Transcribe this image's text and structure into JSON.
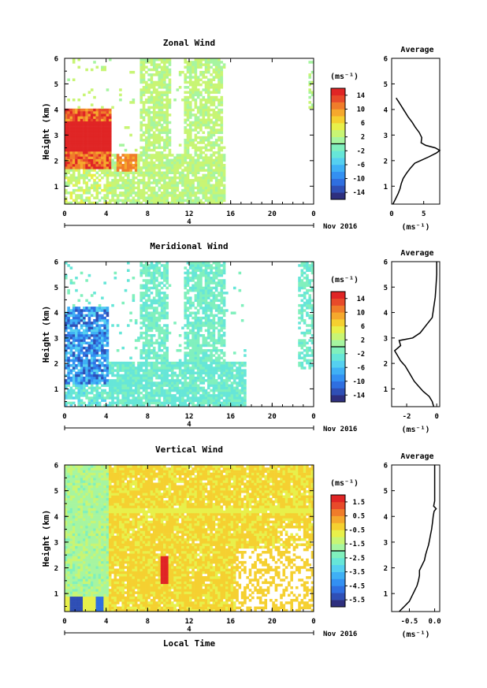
{
  "chart_data": [
    {
      "type": "heatmap",
      "title": "Zonal Wind",
      "ylabel": "Height (km)",
      "x_ticks": [
        "0",
        "4",
        "8",
        "12",
        "16",
        "20",
        "0"
      ],
      "y_ticks": [
        "1",
        "2",
        "3",
        "4",
        "5",
        "6"
      ],
      "xlim": [
        0,
        24
      ],
      "ylim": [
        0.3,
        6
      ],
      "date_marker": "4",
      "date_label": "Nov 2016",
      "colorbar": {
        "unit": "(ms⁻¹)",
        "ticks": [
          "14",
          "10",
          "6",
          "2",
          "-2",
          "-6",
          "-10",
          "-14"
        ],
        "range": [
          -16,
          16
        ],
        "colors": [
          "#2e2f7e",
          "#2f4fb5",
          "#2f6fe0",
          "#3390f2",
          "#3fb0f5",
          "#55d0f0",
          "#66e6d8",
          "#80f0bd",
          "#a6f5a0",
          "#c8f574",
          "#e8f04a",
          "#f5d030",
          "#f5a82d",
          "#f07c2a",
          "#e84a2a",
          "#e02525"
        ]
      },
      "avg_title": "Average",
      "avg_xticks": [
        "0",
        "5"
      ],
      "avg_xlim": [
        0,
        7.5
      ],
      "avg_xlabel": "(ms⁻¹)",
      "avg_profile": [
        [
          0.3,
          0.2
        ],
        [
          0.5,
          0.6
        ],
        [
          0.7,
          1.0
        ],
        [
          0.9,
          1.3
        ],
        [
          1.1,
          1.5
        ],
        [
          1.3,
          1.8
        ],
        [
          1.5,
          2.3
        ],
        [
          1.7,
          2.9
        ],
        [
          1.9,
          3.6
        ],
        [
          2.0,
          4.5
        ],
        [
          2.15,
          5.8
        ],
        [
          2.3,
          7.0
        ],
        [
          2.4,
          7.5
        ],
        [
          2.5,
          6.8
        ],
        [
          2.6,
          5.3
        ],
        [
          2.7,
          4.6
        ],
        [
          2.9,
          4.7
        ],
        [
          3.1,
          4.3
        ],
        [
          3.3,
          3.7
        ],
        [
          3.5,
          3.2
        ],
        [
          3.7,
          2.6
        ],
        [
          3.9,
          2.1
        ],
        [
          4.1,
          1.6
        ],
        [
          4.3,
          1.1
        ],
        [
          4.45,
          0.7
        ]
      ]
    },
    {
      "type": "heatmap",
      "title": "Meridional Wind",
      "ylabel": "Height (km)",
      "x_ticks": [
        "0",
        "4",
        "8",
        "12",
        "16",
        "20",
        "0"
      ],
      "y_ticks": [
        "1",
        "2",
        "3",
        "4",
        "5",
        "6"
      ],
      "xlim": [
        0,
        24
      ],
      "ylim": [
        0.3,
        6
      ],
      "date_marker": "4",
      "date_label": "Nov 2016",
      "colorbar": {
        "unit": "(ms⁻¹)",
        "ticks": [
          "14",
          "10",
          "6",
          "2",
          "-2",
          "-6",
          "-10",
          "-14"
        ],
        "range": [
          -16,
          16
        ],
        "colors": [
          "#2e2f7e",
          "#2f4fb5",
          "#2f6fe0",
          "#3390f2",
          "#3fb0f5",
          "#55d0f0",
          "#66e6d8",
          "#80f0bd",
          "#a6f5a0",
          "#c8f574",
          "#e8f04a",
          "#f5d030",
          "#f5a82d",
          "#f07c2a",
          "#e84a2a",
          "#e02525"
        ]
      },
      "avg_title": "Average",
      "avg_xticks": [
        "-2",
        "0"
      ],
      "avg_xlim": [
        -3,
        0.2
      ],
      "avg_xlabel": "(ms⁻¹)",
      "avg_profile": [
        [
          0.3,
          -0.2
        ],
        [
          0.5,
          -0.3
        ],
        [
          0.7,
          -0.5
        ],
        [
          0.9,
          -0.9
        ],
        [
          1.1,
          -1.2
        ],
        [
          1.3,
          -1.5
        ],
        [
          1.5,
          -1.7
        ],
        [
          1.7,
          -1.9
        ],
        [
          1.9,
          -2.1
        ],
        [
          2.1,
          -2.4
        ],
        [
          2.3,
          -2.6
        ],
        [
          2.5,
          -2.8
        ],
        [
          2.7,
          -2.4
        ],
        [
          2.9,
          -2.5
        ],
        [
          3.0,
          -1.6
        ],
        [
          3.2,
          -1.1
        ],
        [
          3.5,
          -0.7
        ],
        [
          3.8,
          -0.3
        ],
        [
          4.2,
          -0.2
        ],
        [
          4.6,
          -0.1
        ],
        [
          5.0,
          -0.05
        ],
        [
          5.5,
          0.0
        ],
        [
          6.0,
          0.0
        ]
      ]
    },
    {
      "type": "heatmap",
      "title": "Vertical Wind",
      "ylabel": "Height (km)",
      "xlabel": "Local Time",
      "x_ticks": [
        "0",
        "4",
        "8",
        "12",
        "16",
        "20",
        "0"
      ],
      "y_ticks": [
        "1",
        "2",
        "3",
        "4",
        "5",
        "6"
      ],
      "xlim": [
        0,
        24
      ],
      "ylim": [
        0.3,
        6
      ],
      "date_marker": "4",
      "date_label": "Nov 2016",
      "colorbar": {
        "unit": "(ms⁻¹)",
        "ticks": [
          "1.5",
          "0.5",
          "-0.5",
          "-1.5",
          "-2.5",
          "-3.5",
          "-4.5",
          "-5.5"
        ],
        "range": [
          -6,
          2
        ],
        "colors": [
          "#2e2f7e",
          "#2f4fb5",
          "#2f6fe0",
          "#3390f2",
          "#3fb0f5",
          "#55d0f0",
          "#66e6d8",
          "#80f0bd",
          "#a6f5a0",
          "#c8f574",
          "#e8f04a",
          "#f5d030",
          "#f5a82d",
          "#f07c2a",
          "#e84a2a",
          "#e02525"
        ]
      },
      "avg_title": "Average",
      "avg_xticks": [
        "-0.5",
        "0.0"
      ],
      "avg_xlim": [
        -0.85,
        0.1
      ],
      "avg_xlabel": "(ms⁻¹)",
      "avg_profile": [
        [
          0.3,
          -0.7
        ],
        [
          0.5,
          -0.6
        ],
        [
          0.7,
          -0.5
        ],
        [
          0.9,
          -0.45
        ],
        [
          1.1,
          -0.4
        ],
        [
          1.3,
          -0.35
        ],
        [
          1.5,
          -0.32
        ],
        [
          1.7,
          -0.3
        ],
        [
          1.9,
          -0.3
        ],
        [
          2.1,
          -0.25
        ],
        [
          2.3,
          -0.2
        ],
        [
          2.5,
          -0.18
        ],
        [
          2.7,
          -0.15
        ],
        [
          2.9,
          -0.12
        ],
        [
          3.1,
          -0.1
        ],
        [
          3.3,
          -0.08
        ],
        [
          3.5,
          -0.06
        ],
        [
          3.8,
          -0.04
        ],
        [
          4.0,
          -0.03
        ],
        [
          4.2,
          -0.01
        ],
        [
          4.3,
          0.03
        ],
        [
          4.4,
          -0.02
        ],
        [
          4.6,
          0.0
        ],
        [
          5.0,
          0.0
        ],
        [
          5.5,
          0.0
        ],
        [
          6.0,
          0.0
        ]
      ]
    }
  ]
}
